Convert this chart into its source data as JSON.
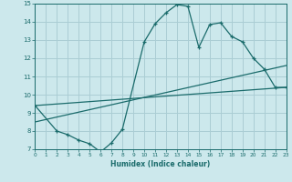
{
  "background_color": "#cce8ec",
  "grid_color": "#aacdd4",
  "line_color": "#1a6b6b",
  "xlabel": "Humidex (Indice chaleur)",
  "xlim": [
    0,
    23
  ],
  "ylim": [
    7,
    15
  ],
  "yticks": [
    7,
    8,
    9,
    10,
    11,
    12,
    13,
    14,
    15
  ],
  "xticks": [
    0,
    1,
    2,
    3,
    4,
    5,
    6,
    7,
    8,
    9,
    10,
    11,
    12,
    13,
    14,
    15,
    16,
    17,
    18,
    19,
    20,
    21,
    22,
    23
  ],
  "line1_x": [
    0,
    2,
    3,
    4,
    5,
    6,
    7,
    8,
    10,
    11,
    12,
    13,
    14,
    15,
    16,
    17,
    18,
    19,
    20,
    21,
    22,
    23
  ],
  "line1_y": [
    9.4,
    8.0,
    7.8,
    7.5,
    7.3,
    6.85,
    7.35,
    8.1,
    12.9,
    13.9,
    14.5,
    14.95,
    14.85,
    12.6,
    13.85,
    13.95,
    13.2,
    12.9,
    12.0,
    11.4,
    10.4,
    10.4
  ],
  "line2_x": [
    0,
    23
  ],
  "line2_y": [
    9.4,
    10.4
  ],
  "line3_x": [
    2,
    23
  ],
  "line3_y": [
    8.0,
    10.4
  ],
  "line4_x": [
    2,
    23
  ],
  "line4_y": [
    8.0,
    11.6
  ]
}
